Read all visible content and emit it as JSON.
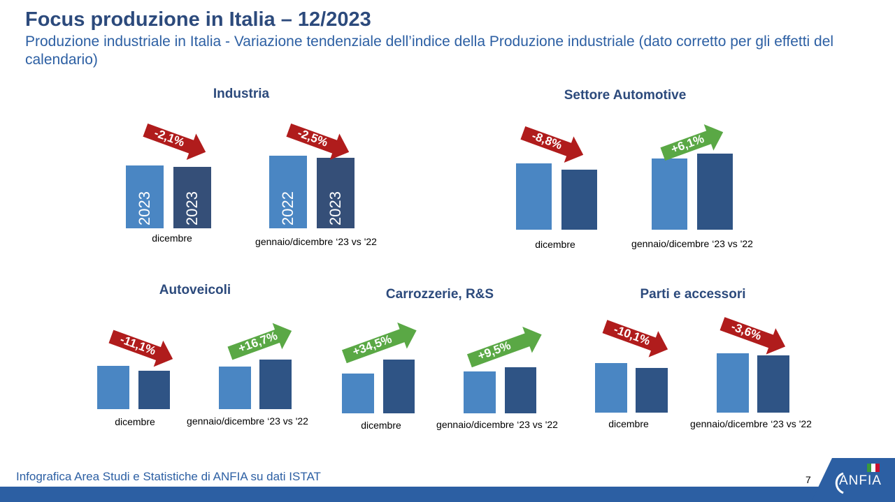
{
  "header": {
    "title": "Focus produzione in Italia – 12/2023",
    "subtitle": "Produzione industriale in Italia - Variazione tendenziale dell’indice della Produzione industriale (dato corretto per gli effetti del calendario)"
  },
  "footer": {
    "source": "Infografica Area Studi e Statistiche di ANFIA su dati ISTAT",
    "page_number": "7",
    "logo_text": "ANFIA"
  },
  "colors": {
    "bar_previous": "#4a86c3",
    "bar_current": "#2f5485",
    "arrow_negative": "#b01c1c",
    "arrow_positive": "#5aa845",
    "title": "#2c4a7c"
  },
  "chart_data": [
    {
      "type": "bar",
      "title": "Industria",
      "groups": [
        {
          "label": "dicembre",
          "bar_labels": [
            "2023",
            "2023"
          ],
          "change": "-2,1%",
          "direction": "down"
        },
        {
          "label": "gennaio/dicembre ‘23 vs '22",
          "bar_labels": [
            "2022",
            "2023"
          ],
          "change": "-2,5%",
          "direction": "down"
        }
      ]
    },
    {
      "type": "bar",
      "title": "Settore Automotive",
      "groups": [
        {
          "label": "dicembre",
          "change": "-8,8%",
          "direction": "down"
        },
        {
          "label": "gennaio/dicembre ‘23 vs '22",
          "change": "+6,1%",
          "direction": "up"
        }
      ]
    },
    {
      "type": "bar",
      "title": "Autoveicoli",
      "groups": [
        {
          "label": "dicembre",
          "change": "-11,1%",
          "direction": "down"
        },
        {
          "label": "gennaio/dicembre ‘23 vs '22",
          "change": "+16,7%",
          "direction": "up"
        }
      ]
    },
    {
      "type": "bar",
      "title": "Carrozzerie, R&S",
      "groups": [
        {
          "label": "dicembre",
          "change": "+34,5%",
          "direction": "up"
        },
        {
          "label": "gennaio/dicembre ‘23 vs '22",
          "change": "+9,5%",
          "direction": "up"
        }
      ]
    },
    {
      "type": "bar",
      "title": "Parti e accessori",
      "groups": [
        {
          "label": "dicembre",
          "change": "-10,1%",
          "direction": "down"
        },
        {
          "label": "gennaio/dicembre ‘23 vs '22",
          "change": "-3,6%",
          "direction": "down"
        }
      ]
    }
  ]
}
